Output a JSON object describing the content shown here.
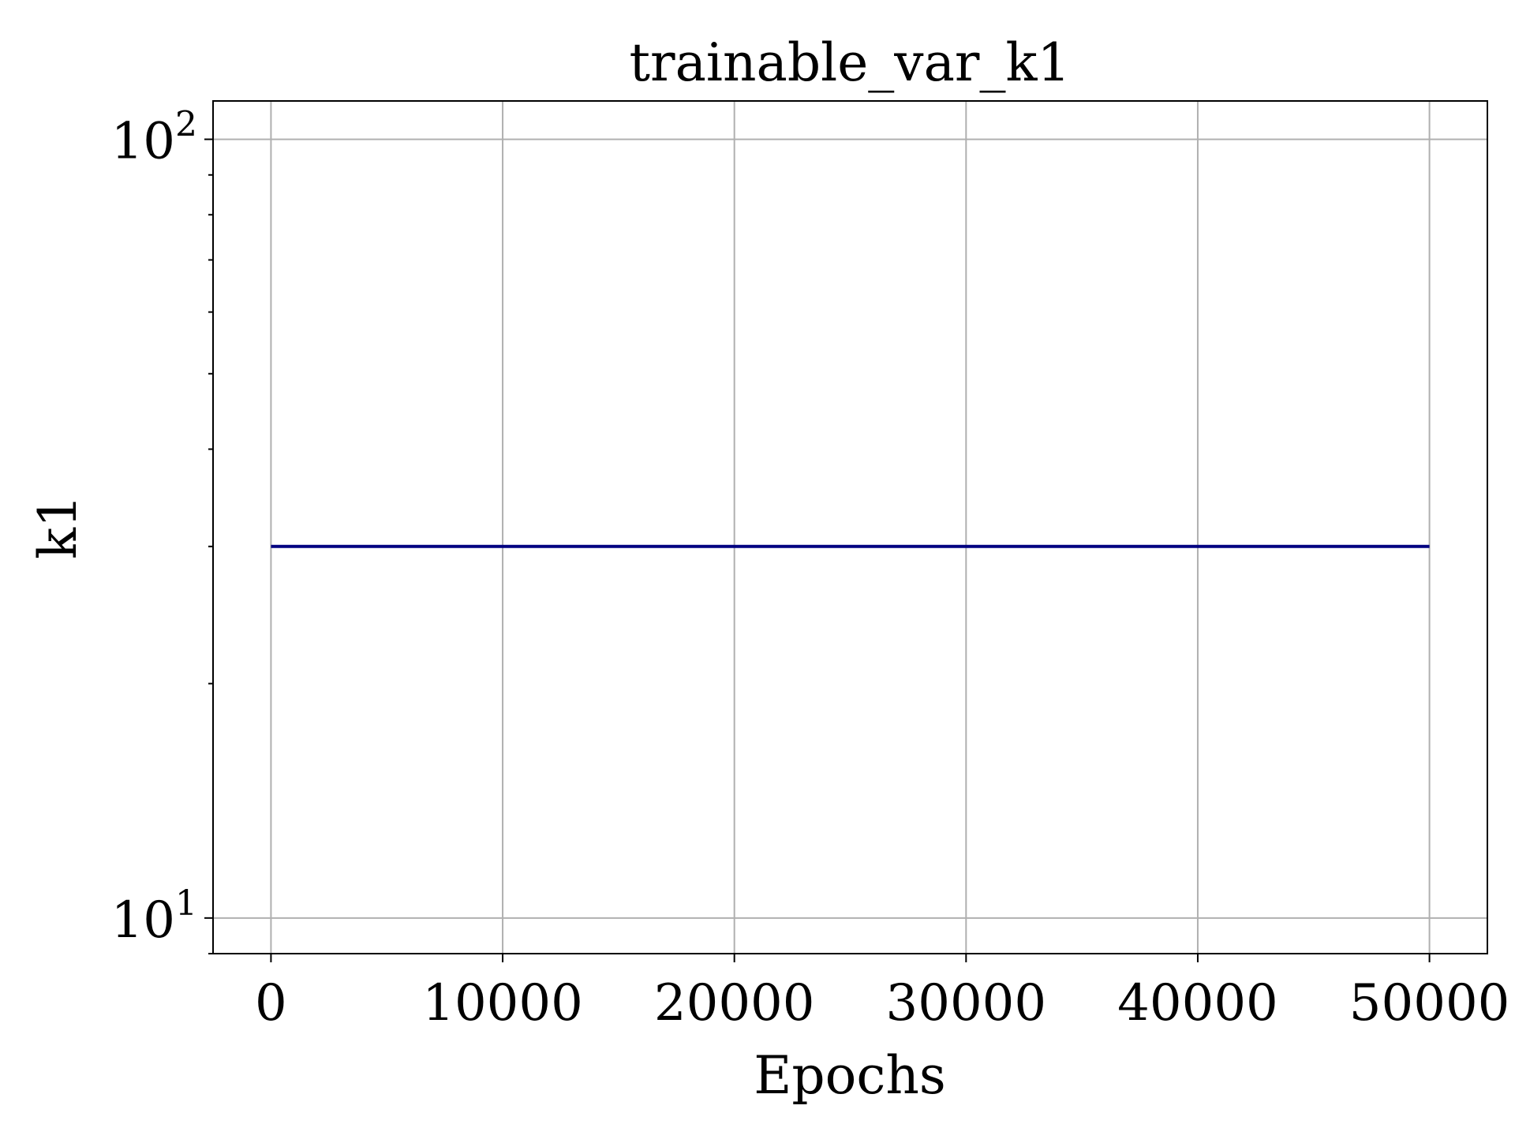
{
  "chart_data": {
    "type": "line",
    "title": "trainable_var_k1",
    "xlabel": "Epochs",
    "ylabel": "k1",
    "xlim": [
      -2500,
      52500
    ],
    "ylim": [
      9,
      112
    ],
    "yscale": "log",
    "grid": true,
    "x_ticks": [
      0,
      10000,
      20000,
      30000,
      40000,
      50000
    ],
    "x_tick_labels": [
      "0",
      "10000",
      "20000",
      "30000",
      "40000",
      "50000"
    ],
    "y_ticks": [
      {
        "value": 10,
        "base": "10",
        "exponent": "1"
      },
      {
        "value": 100,
        "base": "10",
        "exponent": "2"
      }
    ],
    "y_minor_ticks": [
      9,
      20,
      30,
      40,
      50,
      60,
      70,
      80,
      90
    ],
    "series": [
      {
        "color": "#000080",
        "x": [
          0,
          50000
        ],
        "y": [
          30,
          30
        ]
      }
    ]
  }
}
